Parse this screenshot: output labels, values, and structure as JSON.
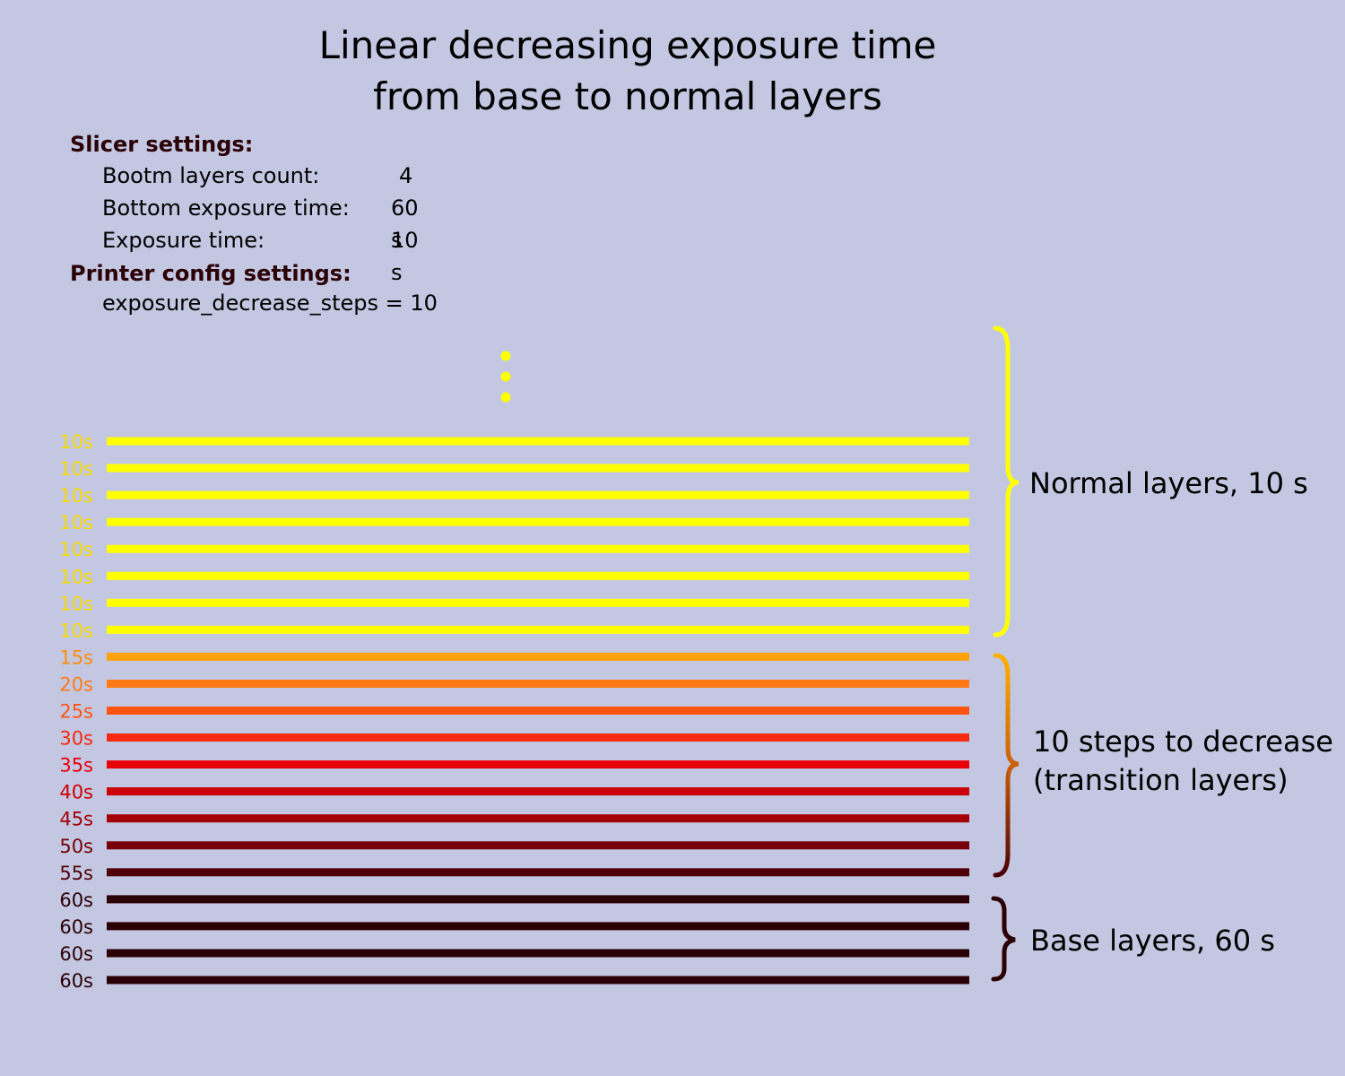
{
  "title": {
    "line1": "Linear decreasing exposure time",
    "line2": "from base to normal layers"
  },
  "slicer_settings": {
    "heading": "Slicer settings:",
    "rows": [
      {
        "label": "Bootm layers count:",
        "value": "4"
      },
      {
        "label": "Bottom exposure time:",
        "value": "60 s"
      },
      {
        "label": "Exposure time:",
        "value": "10 s"
      }
    ]
  },
  "printer_config": {
    "heading": "Printer config settings:",
    "line": "exposure_decrease_steps = 10"
  },
  "layers_bottom_to_top": [
    {
      "label": "60s",
      "exposure_s": 60,
      "color": "#2a0006",
      "group": "base"
    },
    {
      "label": "60s",
      "exposure_s": 60,
      "color": "#2a0006",
      "group": "base"
    },
    {
      "label": "60s",
      "exposure_s": 60,
      "color": "#2a0006",
      "group": "base"
    },
    {
      "label": "60s",
      "exposure_s": 60,
      "color": "#2a0006",
      "group": "base"
    },
    {
      "label": "55s",
      "exposure_s": 55,
      "color": "#4f0008",
      "group": "transition"
    },
    {
      "label": "50s",
      "exposure_s": 50,
      "color": "#770008",
      "group": "transition"
    },
    {
      "label": "45s",
      "exposure_s": 45,
      "color": "#a30008",
      "group": "transition"
    },
    {
      "label": "40s",
      "exposure_s": 40,
      "color": "#cc0008",
      "group": "transition"
    },
    {
      "label": "35s",
      "exposure_s": 35,
      "color": "#e8000a",
      "group": "transition"
    },
    {
      "label": "30s",
      "exposure_s": 30,
      "color": "#f52a10",
      "group": "transition"
    },
    {
      "label": "25s",
      "exposure_s": 25,
      "color": "#ff5511",
      "group": "transition"
    },
    {
      "label": "20s",
      "exposure_s": 20,
      "color": "#ff7a14",
      "group": "transition"
    },
    {
      "label": "15s",
      "exposure_s": 15,
      "color": "#ffa20c",
      "group": "transition"
    },
    {
      "label": "10s",
      "exposure_s": 10,
      "color": "#ffff00",
      "group": "normal"
    },
    {
      "label": "10s",
      "exposure_s": 10,
      "color": "#ffff00",
      "group": "normal"
    },
    {
      "label": "10s",
      "exposure_s": 10,
      "color": "#ffff00",
      "group": "normal"
    },
    {
      "label": "10s",
      "exposure_s": 10,
      "color": "#ffff00",
      "group": "normal"
    },
    {
      "label": "10s",
      "exposure_s": 10,
      "color": "#ffff00",
      "group": "normal"
    },
    {
      "label": "10s",
      "exposure_s": 10,
      "color": "#ffff00",
      "group": "normal"
    },
    {
      "label": "10s",
      "exposure_s": 10,
      "color": "#ffff00",
      "group": "normal"
    },
    {
      "label": "10s",
      "exposure_s": 10,
      "color": "#ffff00",
      "group": "normal"
    }
  ],
  "label_colors": {
    "normal": "#f5d800",
    "15s": "#ff8c0a"
  },
  "continuation_dots_color": "#ffff00",
  "groups": {
    "normal": {
      "label": "Normal layers, 10 s",
      "brace_color": "#ffff00"
    },
    "transition": {
      "label_line1": "10 steps to decrease",
      "label_line2": "(transition layers)",
      "brace_gradient": [
        "#ffb000",
        "#c9600a",
        "#4a0006"
      ]
    },
    "base": {
      "label": "Base layers, 60 s",
      "brace_color": "#2a0006"
    }
  }
}
